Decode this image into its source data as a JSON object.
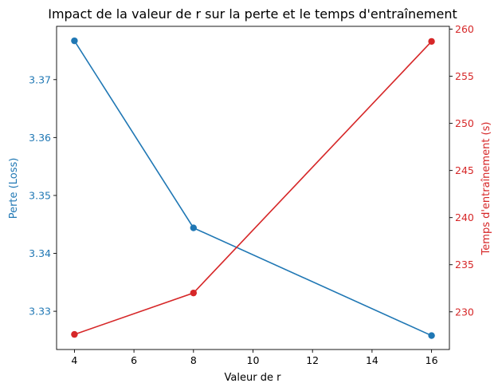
{
  "chart_data": {
    "type": "line",
    "title": "Impact de la valeur de r sur la perte et le temps d'entraînement",
    "xlabel": "Valeur de r",
    "xlim": [
      3.4,
      16.6
    ],
    "xticks": [
      4,
      6,
      8,
      10,
      12,
      14,
      16
    ],
    "grid": false,
    "x": [
      4,
      8,
      16
    ],
    "series": [
      {
        "name": "Perte (Loss)",
        "axis": "left",
        "color": "#1f77b4",
        "marker": "circle",
        "values": [
          3.3767,
          3.3444,
          3.3258
        ]
      },
      {
        "name": "Temps d'entraînement (s)",
        "axis": "right",
        "color": "#d62728",
        "marker": "circle",
        "values": [
          227.6,
          232.0,
          258.7
        ]
      }
    ],
    "y_left": {
      "label": "Perte (Loss)",
      "color": "#1f77b4",
      "ylim": [
        3.3234,
        3.3792
      ],
      "ticks": [
        3.33,
        3.34,
        3.35,
        3.36,
        3.37
      ],
      "tick_labels": [
        "3.33",
        "3.34",
        "3.35",
        "3.36",
        "3.37"
      ]
    },
    "y_right": {
      "label": "Temps d'entraînement (s)",
      "color": "#d62728",
      "ylim": [
        226.0,
        260.3
      ],
      "ticks": [
        230,
        235,
        240,
        245,
        250,
        255,
        260
      ],
      "tick_labels": [
        "230",
        "235",
        "240",
        "245",
        "250",
        "255",
        "260"
      ]
    }
  }
}
